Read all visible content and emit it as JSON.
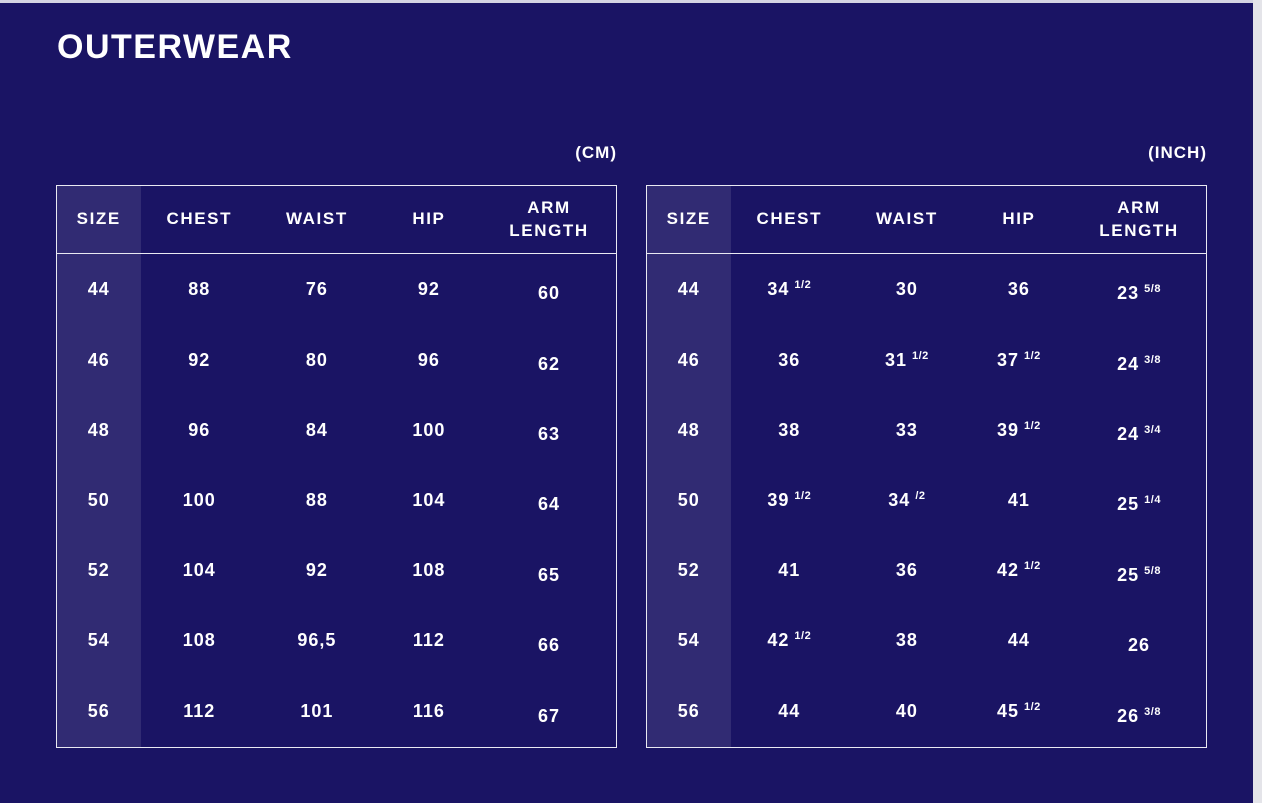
{
  "page": {
    "title": "OUTERWEAR"
  },
  "colors": {
    "background": "#1a1464",
    "column_highlight": "rgba(255,255,255,0.10)",
    "border": "#e9e9f2",
    "text": "#ffffff",
    "page_edge": "#e4e4e9"
  },
  "cm_table": {
    "unit_label": "(CM)",
    "headers": [
      "SIZE",
      "CHEST",
      "WAIST",
      "HIP",
      "ARM LENGTH"
    ],
    "rows": [
      [
        {
          "t": "44"
        },
        {
          "t": "88"
        },
        {
          "t": "76"
        },
        {
          "t": "92"
        },
        {
          "t": "60"
        }
      ],
      [
        {
          "t": "46"
        },
        {
          "t": "92"
        },
        {
          "t": "80"
        },
        {
          "t": "96"
        },
        {
          "t": "62"
        }
      ],
      [
        {
          "t": "48"
        },
        {
          "t": "96"
        },
        {
          "t": "84"
        },
        {
          "t": "100"
        },
        {
          "t": "63"
        }
      ],
      [
        {
          "t": "50"
        },
        {
          "t": "100"
        },
        {
          "t": "88"
        },
        {
          "t": "104"
        },
        {
          "t": "64"
        }
      ],
      [
        {
          "t": "52"
        },
        {
          "t": "104"
        },
        {
          "t": "92"
        },
        {
          "t": "108"
        },
        {
          "t": "65"
        }
      ],
      [
        {
          "t": "54"
        },
        {
          "t": "108"
        },
        {
          "t": "96,5"
        },
        {
          "t": "112"
        },
        {
          "t": "66"
        }
      ],
      [
        {
          "t": "56"
        },
        {
          "t": "112"
        },
        {
          "t": "101"
        },
        {
          "t": "116"
        },
        {
          "t": "67"
        }
      ]
    ]
  },
  "inch_table": {
    "unit_label": "(INCH)",
    "headers": [
      "SIZE",
      "CHEST",
      "WAIST",
      "HIP",
      "ARM LENGTH"
    ],
    "rows": [
      [
        {
          "t": "44"
        },
        {
          "t": "34",
          "s": "1/2"
        },
        {
          "t": "30"
        },
        {
          "t": "36"
        },
        {
          "t": "23",
          "s": "5/8"
        }
      ],
      [
        {
          "t": "46"
        },
        {
          "t": "36"
        },
        {
          "t": "31",
          "s": "1/2"
        },
        {
          "t": "37",
          "s": "1/2"
        },
        {
          "t": "24",
          "s": "3/8"
        }
      ],
      [
        {
          "t": "48"
        },
        {
          "t": "38"
        },
        {
          "t": "33"
        },
        {
          "t": "39",
          "s": "1/2"
        },
        {
          "t": "24",
          "s": "3/4"
        }
      ],
      [
        {
          "t": "50"
        },
        {
          "t": "39",
          "s": "1/2"
        },
        {
          "t": "34",
          "s": "/2"
        },
        {
          "t": "41"
        },
        {
          "t": "25",
          "s": "1/4"
        }
      ],
      [
        {
          "t": "52"
        },
        {
          "t": "41"
        },
        {
          "t": "36"
        },
        {
          "t": "42",
          "s": "1/2"
        },
        {
          "t": "25",
          "s": "5/8"
        }
      ],
      [
        {
          "t": "54"
        },
        {
          "t": "42",
          "s": "1/2"
        },
        {
          "t": "38"
        },
        {
          "t": "44"
        },
        {
          "t": "26"
        }
      ],
      [
        {
          "t": "56"
        },
        {
          "t": "44"
        },
        {
          "t": "40"
        },
        {
          "t": "45",
          "s": "1/2"
        },
        {
          "t": "26",
          "s": "3/8"
        }
      ]
    ]
  },
  "chart_data": [
    {
      "type": "table",
      "title": "OUTERWEAR (CM)",
      "columns": [
        "SIZE",
        "CHEST",
        "WAIST",
        "HIP",
        "ARM LENGTH"
      ],
      "rows": [
        [
          "44",
          "88",
          "76",
          "92",
          "60"
        ],
        [
          "46",
          "92",
          "80",
          "96",
          "62"
        ],
        [
          "48",
          "96",
          "84",
          "100",
          "63"
        ],
        [
          "50",
          "100",
          "88",
          "104",
          "64"
        ],
        [
          "52",
          "104",
          "92",
          "108",
          "65"
        ],
        [
          "54",
          "108",
          "96,5",
          "112",
          "66"
        ],
        [
          "56",
          "112",
          "101",
          "116",
          "67"
        ]
      ]
    },
    {
      "type": "table",
      "title": "OUTERWEAR (INCH)",
      "columns": [
        "SIZE",
        "CHEST",
        "WAIST",
        "HIP",
        "ARM LENGTH"
      ],
      "rows": [
        [
          "44",
          "34 1/2",
          "30",
          "36",
          "23 5/8"
        ],
        [
          "46",
          "36",
          "31 1/2",
          "37 1/2",
          "24 3/8"
        ],
        [
          "48",
          "38",
          "33",
          "39 1/2",
          "24 3/4"
        ],
        [
          "50",
          "39 1/2",
          "34 /2",
          "41",
          "25 1/4"
        ],
        [
          "52",
          "41",
          "36",
          "42 1/2",
          "25 5/8"
        ],
        [
          "54",
          "42 1/2",
          "38",
          "44",
          "26"
        ],
        [
          "56",
          "44",
          "40",
          "45 1/2",
          "26 3/8"
        ]
      ]
    }
  ]
}
